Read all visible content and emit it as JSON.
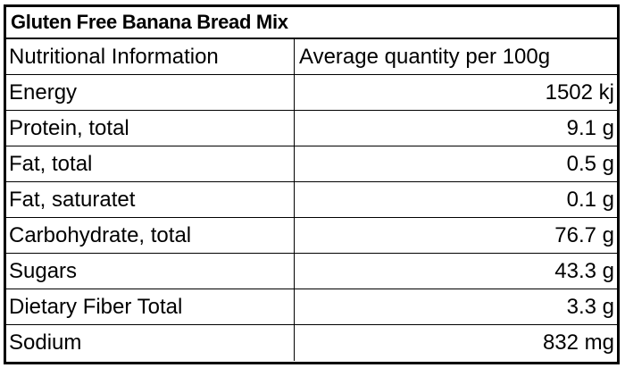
{
  "title": "Gluten Free Banana Bread Mix",
  "columns": {
    "label": "Nutritional Information",
    "value": "Average quantity per 100g"
  },
  "rows": [
    {
      "label": "Energy",
      "value": "1502 kj"
    },
    {
      "label": "Protein, total",
      "value": "9.1 g"
    },
    {
      "label": "Fat, total",
      "value": "0.5 g"
    },
    {
      "label": "Fat, saturatet",
      "value": "0.1 g"
    },
    {
      "label": "Carbohydrate, total",
      "value": "76.7 g"
    },
    {
      "label": "Sugars",
      "value": "43.3 g"
    },
    {
      "label": "Dietary Fiber Total",
      "value": "3.3 g"
    },
    {
      "label": "Sodium",
      "value": "832 mg"
    }
  ]
}
